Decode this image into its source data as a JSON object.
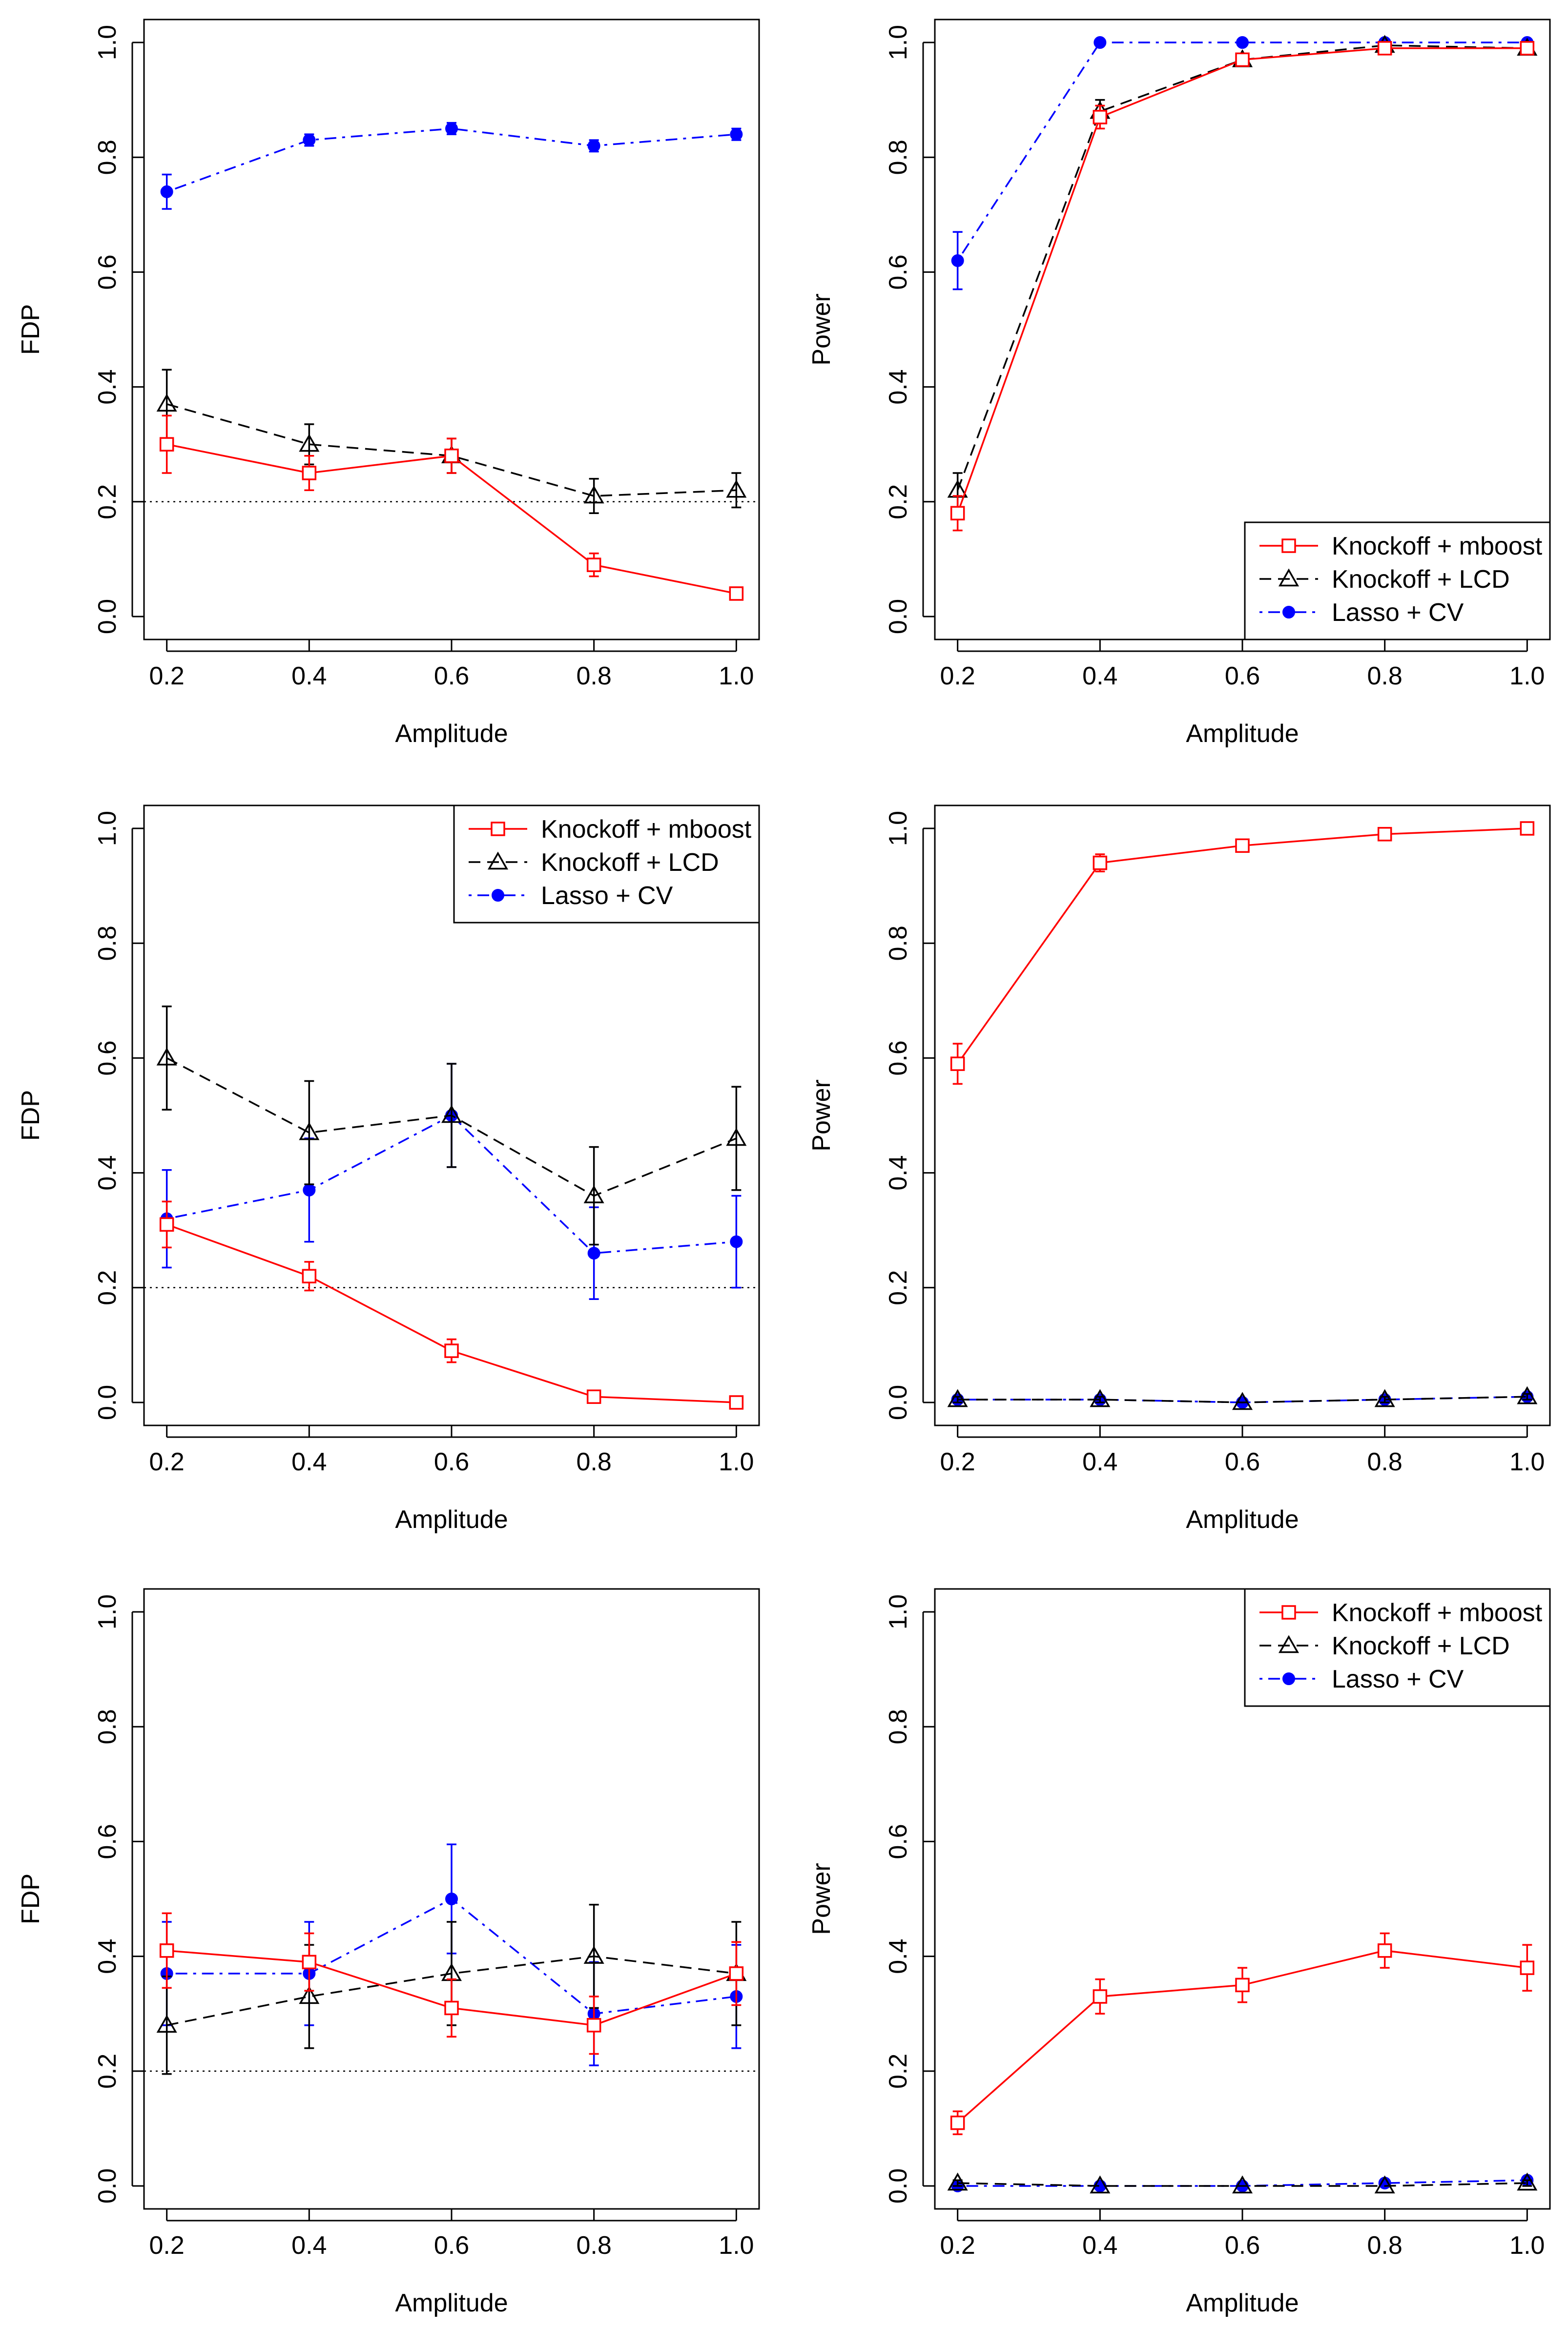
{
  "colors": {
    "mboost": "#ff0000",
    "lcd": "#000000",
    "lasso": "#0000ff",
    "reference": "#000000"
  },
  "legend": {
    "items": [
      {
        "key": "mboost",
        "label": "Knockoff + mboost",
        "marker": "open-square",
        "dash": "solid"
      },
      {
        "key": "lcd",
        "label": "Knockoff + LCD",
        "marker": "open-triangle",
        "dash": "dashed"
      },
      {
        "key": "lasso",
        "label": "Lasso + CV",
        "marker": "filled-circle",
        "dash": "dotdash"
      }
    ]
  },
  "chart_data": [
    {
      "type": "line",
      "metric": "FDP",
      "row": 0,
      "col": 0,
      "xlabel": "Amplitude",
      "ylabel": "FDP",
      "x": [
        0.2,
        0.4,
        0.6,
        0.8,
        1.0
      ],
      "xlim": [
        0.2,
        1.0
      ],
      "ylim": [
        0,
        1
      ],
      "xticks": [
        "0.2",
        "0.4",
        "0.6",
        "0.8",
        "1.0"
      ],
      "yticks": [
        "0.0",
        "0.2",
        "0.4",
        "0.6",
        "0.8",
        "1.0"
      ],
      "reference_line": 0.2,
      "legend_position": "",
      "series": [
        {
          "key": "mboost",
          "name": "Knockoff + mboost",
          "values": [
            0.3,
            0.25,
            0.28,
            0.09,
            0.04
          ],
          "errors": [
            0.05,
            0.03,
            0.03,
            0.02,
            0.01
          ]
        },
        {
          "key": "lcd",
          "name": "Knockoff + LCD",
          "values": [
            0.37,
            0.3,
            0.28,
            0.21,
            0.22
          ],
          "errors": [
            0.06,
            0.035,
            0.03,
            0.03,
            0.03
          ]
        },
        {
          "key": "lasso",
          "name": "Lasso + CV",
          "values": [
            0.74,
            0.83,
            0.85,
            0.82,
            0.84
          ],
          "errors": [
            0.03,
            0.01,
            0.01,
            0.01,
            0.01
          ]
        }
      ]
    },
    {
      "type": "line",
      "metric": "Power",
      "row": 0,
      "col": 1,
      "xlabel": "Amplitude",
      "ylabel": "Power",
      "x": [
        0.2,
        0.4,
        0.6,
        0.8,
        1.0
      ],
      "xlim": [
        0.2,
        1.0
      ],
      "ylim": [
        0,
        1
      ],
      "xticks": [
        "0.2",
        "0.4",
        "0.6",
        "0.8",
        "1.0"
      ],
      "yticks": [
        "0.0",
        "0.2",
        "0.4",
        "0.6",
        "0.8",
        "1.0"
      ],
      "reference_line": null,
      "legend_position": "bottom-right",
      "series": [
        {
          "key": "mboost",
          "name": "Knockoff + mboost",
          "values": [
            0.18,
            0.87,
            0.97,
            0.99,
            0.99
          ],
          "errors": [
            0.03,
            0.02,
            0.01,
            0.005,
            0.005
          ]
        },
        {
          "key": "lcd",
          "name": "Knockoff + LCD",
          "values": [
            0.22,
            0.88,
            0.97,
            0.995,
            0.99
          ],
          "errors": [
            0.03,
            0.02,
            0.01,
            0.005,
            0.005
          ]
        },
        {
          "key": "lasso",
          "name": "Lasso + CV",
          "values": [
            0.62,
            1.0,
            1.0,
            1.0,
            1.0
          ],
          "errors": [
            0.05,
            0.005,
            0.005,
            0.005,
            0.005
          ]
        }
      ]
    },
    {
      "type": "line",
      "metric": "FDP",
      "row": 1,
      "col": 0,
      "xlabel": "Amplitude",
      "ylabel": "FDP",
      "x": [
        0.2,
        0.4,
        0.6,
        0.8,
        1.0
      ],
      "xlim": [
        0.2,
        1.0
      ],
      "ylim": [
        0,
        1
      ],
      "xticks": [
        "0.2",
        "0.4",
        "0.6",
        "0.8",
        "1.0"
      ],
      "yticks": [
        "0.0",
        "0.2",
        "0.4",
        "0.6",
        "0.8",
        "1.0"
      ],
      "reference_line": 0.2,
      "legend_position": "top-right",
      "series": [
        {
          "key": "mboost",
          "name": "Knockoff + mboost",
          "values": [
            0.31,
            0.22,
            0.09,
            0.01,
            0.0
          ],
          "errors": [
            0.04,
            0.025,
            0.02,
            0.005,
            0.005
          ]
        },
        {
          "key": "lcd",
          "name": "Knockoff + LCD",
          "values": [
            0.6,
            0.47,
            0.5,
            0.36,
            0.46
          ],
          "errors": [
            0.09,
            0.09,
            0.09,
            0.085,
            0.09
          ]
        },
        {
          "key": "lasso",
          "name": "Lasso + CV",
          "values": [
            0.32,
            0.37,
            0.5,
            0.26,
            0.28
          ],
          "errors": [
            0.085,
            0.09,
            0.09,
            0.08,
            0.08
          ]
        }
      ]
    },
    {
      "type": "line",
      "metric": "Power",
      "row": 1,
      "col": 1,
      "xlabel": "Amplitude",
      "ylabel": "Power",
      "x": [
        0.2,
        0.4,
        0.6,
        0.8,
        1.0
      ],
      "xlim": [
        0.2,
        1.0
      ],
      "ylim": [
        0,
        1
      ],
      "xticks": [
        "0.2",
        "0.4",
        "0.6",
        "0.8",
        "1.0"
      ],
      "yticks": [
        "0.0",
        "0.2",
        "0.4",
        "0.6",
        "0.8",
        "1.0"
      ],
      "reference_line": null,
      "legend_position": "",
      "series": [
        {
          "key": "mboost",
          "name": "Knockoff + mboost",
          "values": [
            0.59,
            0.94,
            0.97,
            0.99,
            1.0
          ],
          "errors": [
            0.035,
            0.015,
            0.01,
            0.005,
            0.005
          ]
        },
        {
          "key": "lcd",
          "name": "Knockoff + LCD",
          "values": [
            0.005,
            0.005,
            0.0,
            0.005,
            0.01
          ],
          "errors": [
            0.005,
            0.005,
            0.0,
            0.005,
            0.005
          ]
        },
        {
          "key": "lasso",
          "name": "Lasso + CV",
          "values": [
            0.005,
            0.005,
            0.0,
            0.005,
            0.01
          ],
          "errors": [
            0.005,
            0.005,
            0.0,
            0.005,
            0.005
          ]
        }
      ]
    },
    {
      "type": "line",
      "metric": "FDP",
      "row": 2,
      "col": 0,
      "xlabel": "Amplitude",
      "ylabel": "FDP",
      "x": [
        0.2,
        0.4,
        0.6,
        0.8,
        1.0
      ],
      "xlim": [
        0.2,
        1.0
      ],
      "ylim": [
        0,
        1
      ],
      "xticks": [
        "0.2",
        "0.4",
        "0.6",
        "0.8",
        "1.0"
      ],
      "yticks": [
        "0.0",
        "0.2",
        "0.4",
        "0.6",
        "0.8",
        "1.0"
      ],
      "reference_line": 0.2,
      "legend_position": "",
      "series": [
        {
          "key": "mboost",
          "name": "Knockoff + mboost",
          "values": [
            0.41,
            0.39,
            0.31,
            0.28,
            0.37
          ],
          "errors": [
            0.065,
            0.05,
            0.05,
            0.05,
            0.055
          ]
        },
        {
          "key": "lcd",
          "name": "Knockoff + LCD",
          "values": [
            0.28,
            0.33,
            0.37,
            0.4,
            0.37
          ],
          "errors": [
            0.085,
            0.09,
            0.09,
            0.09,
            0.09
          ]
        },
        {
          "key": "lasso",
          "name": "Lasso + CV",
          "values": [
            0.37,
            0.37,
            0.5,
            0.3,
            0.33
          ],
          "errors": [
            0.09,
            0.09,
            0.095,
            0.09,
            0.09
          ]
        }
      ]
    },
    {
      "type": "line",
      "metric": "Power",
      "row": 2,
      "col": 1,
      "xlabel": "Amplitude",
      "ylabel": "Power",
      "x": [
        0.2,
        0.4,
        0.6,
        0.8,
        1.0
      ],
      "xlim": [
        0.2,
        1.0
      ],
      "ylim": [
        0,
        1
      ],
      "xticks": [
        "0.2",
        "0.4",
        "0.6",
        "0.8",
        "1.0"
      ],
      "yticks": [
        "0.0",
        "0.2",
        "0.4",
        "0.6",
        "0.8",
        "1.0"
      ],
      "reference_line": null,
      "legend_position": "top-right",
      "series": [
        {
          "key": "mboost",
          "name": "Knockoff + mboost",
          "values": [
            0.11,
            0.33,
            0.35,
            0.41,
            0.38
          ],
          "errors": [
            0.02,
            0.03,
            0.03,
            0.03,
            0.04
          ]
        },
        {
          "key": "lcd",
          "name": "Knockoff + LCD",
          "values": [
            0.005,
            0.0,
            0.0,
            0.0,
            0.005
          ],
          "errors": [
            0.005,
            0.0,
            0.0,
            0.0,
            0.005
          ]
        },
        {
          "key": "lasso",
          "name": "Lasso + CV",
          "values": [
            0.0,
            0.0,
            0.0,
            0.005,
            0.01
          ],
          "errors": [
            0.0,
            0.0,
            0.0,
            0.005,
            0.005
          ]
        }
      ]
    }
  ]
}
